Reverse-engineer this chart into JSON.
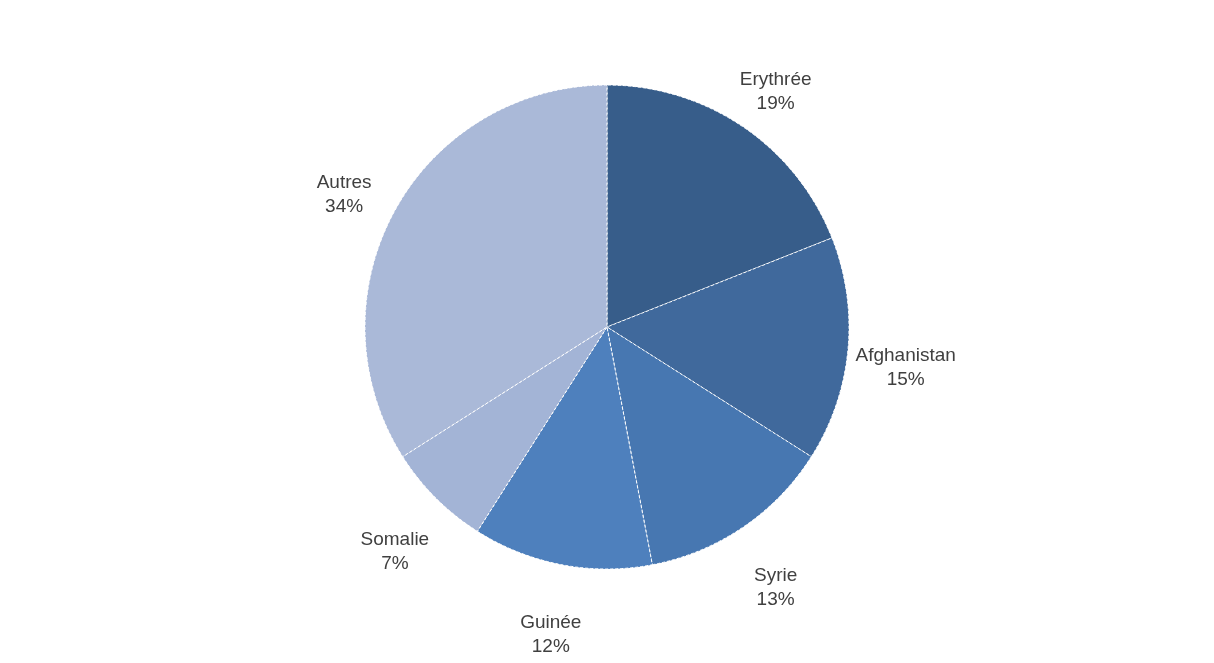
{
  "chart_data": {
    "type": "pie",
    "categories": [
      "Erythrée",
      "Afghanistan",
      "Syrie",
      "Guinée",
      "Somalie",
      "Autres"
    ],
    "values": [
      19,
      15,
      13,
      12,
      7,
      34
    ],
    "colors": [
      "#375d8a",
      "#40699c",
      "#4777b1",
      "#4e80bd",
      "#a3b4d6",
      "#aab9d8"
    ],
    "value_labels": [
      "19%",
      "15%",
      "13%",
      "12%",
      "7%",
      "34%"
    ]
  }
}
